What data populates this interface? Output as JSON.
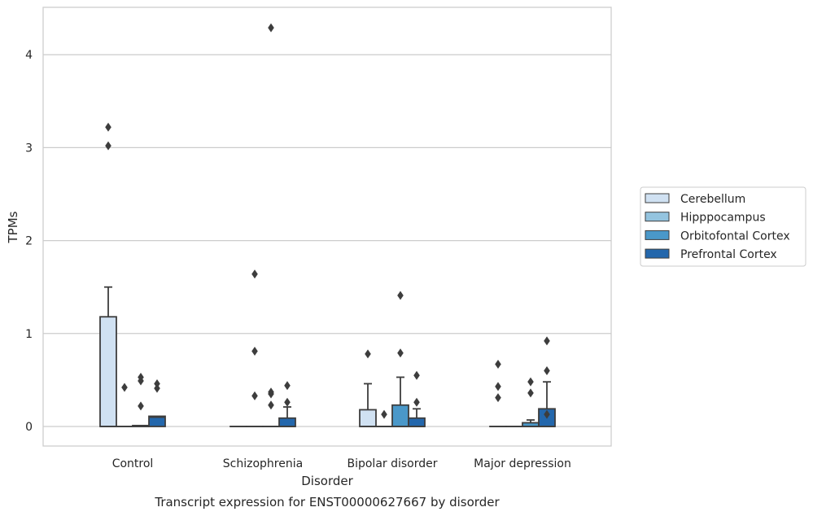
{
  "chart_data": {
    "type": "box",
    "title": "Transcript expression for ENST00000627667 by disorder",
    "xlabel": "Disorder",
    "ylabel": "TPMs",
    "ylim": [
      -0.2,
      4.5
    ],
    "yticks": [
      0,
      1,
      2,
      3,
      4
    ],
    "grid": "horizontal",
    "legend_position": "right",
    "categories": [
      "Control",
      "Schizophrenia",
      "Bipolar disorder",
      "Major depression"
    ],
    "series": [
      {
        "name": "Cerebellum",
        "color": "#d0e1f2",
        "boxes": [
          {
            "q1": 0,
            "median": 0,
            "q3": 1.18,
            "whisker_low": 0,
            "whisker_high": 1.5,
            "outliers": [
              3.02,
              3.22
            ]
          },
          {
            "q1": 0,
            "median": 0,
            "q3": 0,
            "whisker_low": 0,
            "whisker_high": 0,
            "outliers": []
          },
          {
            "q1": 0,
            "median": 0,
            "q3": 0.18,
            "whisker_low": 0,
            "whisker_high": 0.46,
            "outliers": [
              0.78
            ]
          },
          {
            "q1": 0,
            "median": 0,
            "q3": 0,
            "whisker_low": 0,
            "whisker_high": 0,
            "outliers": [
              0.31,
              0.43,
              0.67
            ]
          }
        ]
      },
      {
        "name": "Hipppocampus",
        "color": "#94c4df",
        "boxes": [
          {
            "q1": 0,
            "median": 0,
            "q3": 0,
            "whisker_low": 0,
            "whisker_high": 0,
            "outliers": [
              0.42
            ]
          },
          {
            "q1": 0,
            "median": 0,
            "q3": 0,
            "whisker_low": 0,
            "whisker_high": 0,
            "outliers": [
              0.33,
              0.81,
              1.64
            ]
          },
          {
            "q1": 0,
            "median": 0,
            "q3": 0,
            "whisker_low": 0,
            "whisker_high": 0,
            "outliers": [
              0.13
            ]
          },
          {
            "q1": 0,
            "median": 0,
            "q3": 0,
            "whisker_low": 0,
            "whisker_high": 0,
            "outliers": []
          }
        ]
      },
      {
        "name": "Orbitofontal Cortex",
        "color": "#4a98c9",
        "boxes": [
          {
            "q1": 0,
            "median": 0,
            "q3": 0.01,
            "whisker_low": 0,
            "whisker_high": 0.01,
            "outliers": [
              0.22,
              0.49,
              0.53
            ]
          },
          {
            "q1": 0,
            "median": 0,
            "q3": 0,
            "whisker_low": 0,
            "whisker_high": 0,
            "outliers": [
              0.23,
              0.35,
              0.37,
              4.29
            ]
          },
          {
            "q1": 0,
            "median": 0,
            "q3": 0.23,
            "whisker_low": 0,
            "whisker_high": 0.53,
            "outliers": [
              0.79,
              1.41
            ]
          },
          {
            "q1": 0,
            "median": 0,
            "q3": 0.04,
            "whisker_low": 0,
            "whisker_high": 0.07,
            "outliers": [
              0.36,
              0.48
            ]
          }
        ]
      },
      {
        "name": "Prefrontal Cortex",
        "color": "#2367ac",
        "boxes": [
          {
            "q1": 0,
            "median": 0.1,
            "q3": 0.11,
            "whisker_low": 0,
            "whisker_high": 0.11,
            "outliers": [
              0.41,
              0.46
            ]
          },
          {
            "q1": 0,
            "median": 0,
            "q3": 0.09,
            "whisker_low": 0,
            "whisker_high": 0.21,
            "outliers": [
              0.26,
              0.44
            ]
          },
          {
            "q1": 0,
            "median": 0,
            "q3": 0.09,
            "whisker_low": 0,
            "whisker_high": 0.19,
            "outliers": [
              0.26,
              0.55
            ]
          },
          {
            "q1": 0,
            "median": 0,
            "q3": 0.19,
            "whisker_low": 0,
            "whisker_high": 0.48,
            "outliers": [
              0.13,
              0.6,
              0.92
            ]
          }
        ]
      }
    ]
  }
}
